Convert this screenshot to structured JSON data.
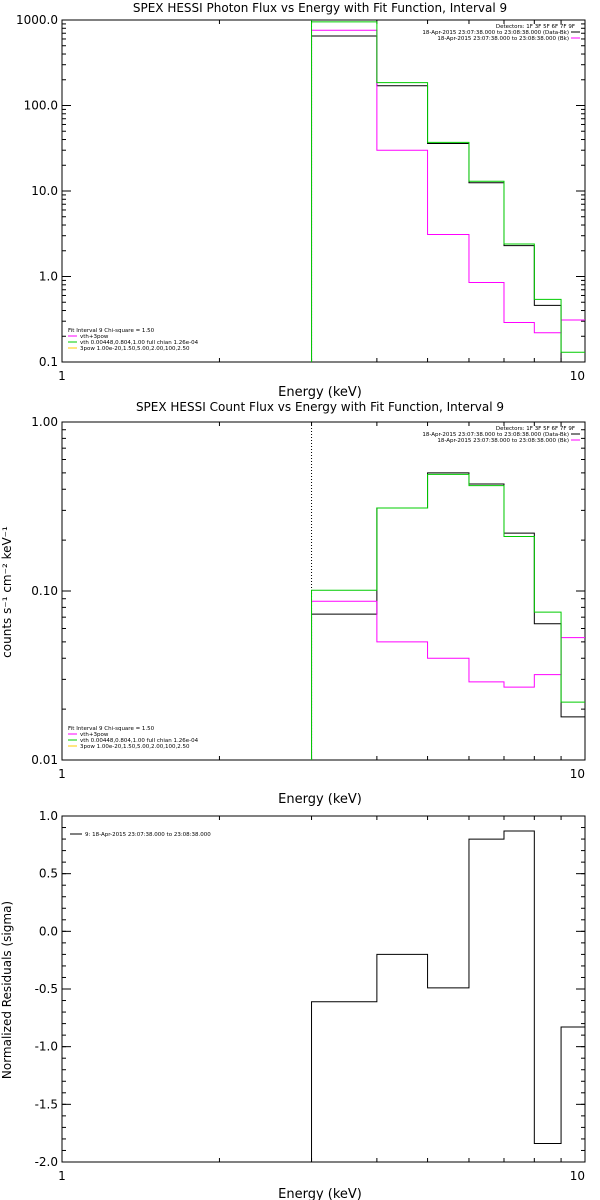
{
  "colors": {
    "data": "#000000",
    "model": "#ff00ff",
    "component_vth": "#00cc00",
    "component_3pow": "#ffcc00",
    "axes": "#000000",
    "background": "#ffffff"
  },
  "chart_data": [
    {
      "type": "line",
      "step": true,
      "title": "SPEX HESSI Photon Flux vs Energy with Fit Function, Interval 9",
      "xlabel": "Energy (keV)",
      "ylabel": "",
      "xscale": "log",
      "yscale": "log",
      "xlim": [
        1,
        10
      ],
      "ylim": [
        0.1,
        1000
      ],
      "xticks": [
        "1",
        "10"
      ],
      "yticks": [
        "0.1",
        "1.0",
        "10.0",
        "100.0",
        "1000.0"
      ],
      "grid": false,
      "legend_top": {
        "placement": "top-right",
        "header": "Detectors: 1F 3F 5F 6F 7F 9F",
        "entries": [
          {
            "label": "18-Apr-2015 23:07:38.000 to 23:08:38.000 (Data-Bk)",
            "color": "#000000"
          },
          {
            "label": "18-Apr-2015 23:07:38.000 to 23:08:38.000 (Bk)",
            "color": "#ff00ff"
          }
        ]
      },
      "legend_bottom": {
        "placement": "bottom-left",
        "header": "Fit Interval 9   Chi-square = 1.50",
        "entries": [
          {
            "label": "vth+3pow",
            "color": "#ff00ff"
          },
          {
            "label": "vth 0.00448,0.804,1.00  full chian 1.26e-04",
            "color": "#00cc00"
          },
          {
            "label": "3pow 1.00e-20,1.50,5.00,2.00,100,2.50",
            "color": "#ffcc00"
          }
        ]
      },
      "edges": [
        3,
        4,
        5,
        6,
        7,
        8,
        9,
        10
      ],
      "series": [
        {
          "color": "#000000",
          "values": [
            650,
            170,
            36,
            12.5,
            2.3,
            0.46,
            0.1
          ]
        },
        {
          "color": "#ff00ff",
          "values": [
            760,
            30,
            3.1,
            0.85,
            0.29,
            0.22,
            0.31
          ]
        },
        {
          "color": "#00cc00",
          "values": [
            950,
            185,
            37,
            13,
            2.4,
            0.54,
            0.13
          ]
        }
      ],
      "vline": {
        "x": 3,
        "color": "#00cc00",
        "style": "dotted"
      }
    },
    {
      "type": "line",
      "step": true,
      "title": "SPEX HESSI Count Flux vs Energy with Fit Function, Interval 9",
      "xlabel": "Energy (keV)",
      "ylabel": "counts s⁻¹ cm⁻² keV⁻¹",
      "xscale": "log",
      "yscale": "log",
      "xlim": [
        1,
        10
      ],
      "ylim": [
        0.01,
        1
      ],
      "xticks": [
        "1",
        "10"
      ],
      "yticks": [
        "0.01",
        "0.10",
        "1.00"
      ],
      "grid": false,
      "legend_top": {
        "placement": "top-right",
        "header": "Detectors: 1F 3F 5F 6F 7F 9F",
        "entries": [
          {
            "label": "18-Apr-2015 23:07:38.000 to 23:08:38.000 (Data-Bk)",
            "color": "#000000"
          },
          {
            "label": "18-Apr-2015 23:07:38.000 to 23:08:38.000 (Bk)",
            "color": "#ff00ff"
          }
        ]
      },
      "legend_bottom": {
        "placement": "bottom-left",
        "header": "Fit Interval 9   Chi-square = 1.50",
        "entries": [
          {
            "label": "vth+3pow",
            "color": "#ff00ff"
          },
          {
            "label": "vth 0.00448,0.804,1.00  full chian 1.26e-04",
            "color": "#00cc00"
          },
          {
            "label": "3pow 1.00e-20,1.50,5.00,2.00,100,2.50",
            "color": "#ffcc00"
          }
        ]
      },
      "edges": [
        3,
        4,
        5,
        6,
        7,
        8,
        9,
        10
      ],
      "series": [
        {
          "color": "#000000",
          "values": [
            0.073,
            0.31,
            0.5,
            0.43,
            0.22,
            0.064,
            0.018
          ]
        },
        {
          "color": "#ff00ff",
          "values": [
            0.087,
            0.05,
            0.04,
            0.029,
            0.027,
            0.032,
            0.053
          ]
        },
        {
          "color": "#00cc00",
          "values": [
            0.101,
            0.31,
            0.49,
            0.42,
            0.21,
            0.075,
            0.022
          ]
        }
      ],
      "vline": {
        "x": 3,
        "color": "#000000",
        "style": "dotted"
      }
    },
    {
      "type": "line",
      "step": true,
      "title": "",
      "xlabel": "Energy (keV)",
      "ylabel": "Normalized Residuals (sigma)",
      "xscale": "log",
      "yscale": "linear",
      "xlim": [
        1,
        10
      ],
      "ylim": [
        -2,
        1
      ],
      "xticks": [
        "1",
        "10"
      ],
      "yticks": [
        "-2.0",
        "-1.5",
        "-1.0",
        "-0.5",
        "0.0",
        "0.5",
        "1.0"
      ],
      "grid": false,
      "legend_top": {
        "placement": "top-left",
        "header": "",
        "entries": [
          {
            "label": "9: 18-Apr-2015 23:07:38.000 to 23:08:38.000",
            "color": "#000000"
          }
        ]
      },
      "edges": [
        3,
        4,
        5,
        6,
        7,
        8,
        9,
        10
      ],
      "series": [
        {
          "color": "#000000",
          "values": [
            -0.61,
            -0.2,
            -0.49,
            0.8,
            0.87,
            -1.84,
            -0.83
          ]
        }
      ]
    }
  ]
}
